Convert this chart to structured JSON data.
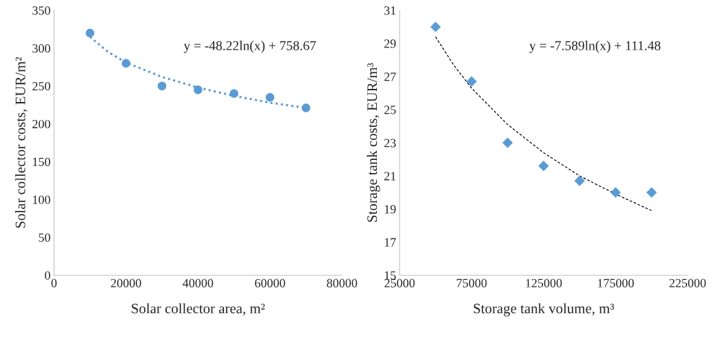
{
  "chart_data": [
    {
      "type": "scatter",
      "xlabel": "Solar collector area, m²",
      "ylabel": "Solar collector costs, EUR/m²",
      "xlim": [
        0,
        80000
      ],
      "xticks": [
        0,
        20000,
        40000,
        60000,
        80000
      ],
      "ylim": [
        0,
        350
      ],
      "yticks": [
        0,
        50,
        100,
        150,
        200,
        250,
        300,
        350
      ],
      "grid": false,
      "annotations": [
        "y = -48.22ln(x) + 758.67"
      ],
      "series": [
        {
          "color": "#5b9bd5",
          "marker": "circle",
          "x": [
            10000,
            20000,
            30000,
            40000,
            50000,
            60000,
            70000
          ],
          "values": [
            320,
            280,
            250,
            245,
            240,
            235,
            221
          ]
        },
        {
          "type": "line",
          "color": "#5b9bd5",
          "line_style": "dotted",
          "x": [
            10000,
            15000,
            20000,
            30000,
            40000,
            50000,
            60000,
            70000
          ],
          "values": [
            315,
            295,
            281,
            262,
            248,
            237,
            228,
            221
          ]
        }
      ]
    },
    {
      "type": "scatter",
      "xlabel": "Storage tank volume, m³",
      "ylabel": "Storage tank costs, EUR/m³",
      "xlim": [
        25000,
        225000
      ],
      "xticks": [
        25000,
        75000,
        125000,
        175000,
        225000
      ],
      "ylim": [
        15,
        31
      ],
      "yticks": [
        15,
        17,
        19,
        21,
        23,
        25,
        27,
        29,
        31
      ],
      "grid": false,
      "annotations": [
        "y = -7.589ln(x) + 111.48"
      ],
      "series": [
        {
          "color": "#5b9bd5",
          "marker": "diamond",
          "x": [
            50000,
            75000,
            100000,
            125000,
            150000,
            175000,
            200000
          ],
          "values": [
            30.0,
            26.7,
            23.0,
            21.6,
            20.7,
            20.0,
            20.0
          ]
        },
        {
          "type": "line",
          "color": "#000000",
          "line_style": "dashed",
          "x": [
            50000,
            62500,
            75000,
            100000,
            125000,
            150000,
            175000,
            200000
          ],
          "values": [
            29.4,
            27.7,
            26.3,
            24.1,
            22.4,
            21.0,
            19.9,
            18.9
          ]
        }
      ]
    }
  ]
}
